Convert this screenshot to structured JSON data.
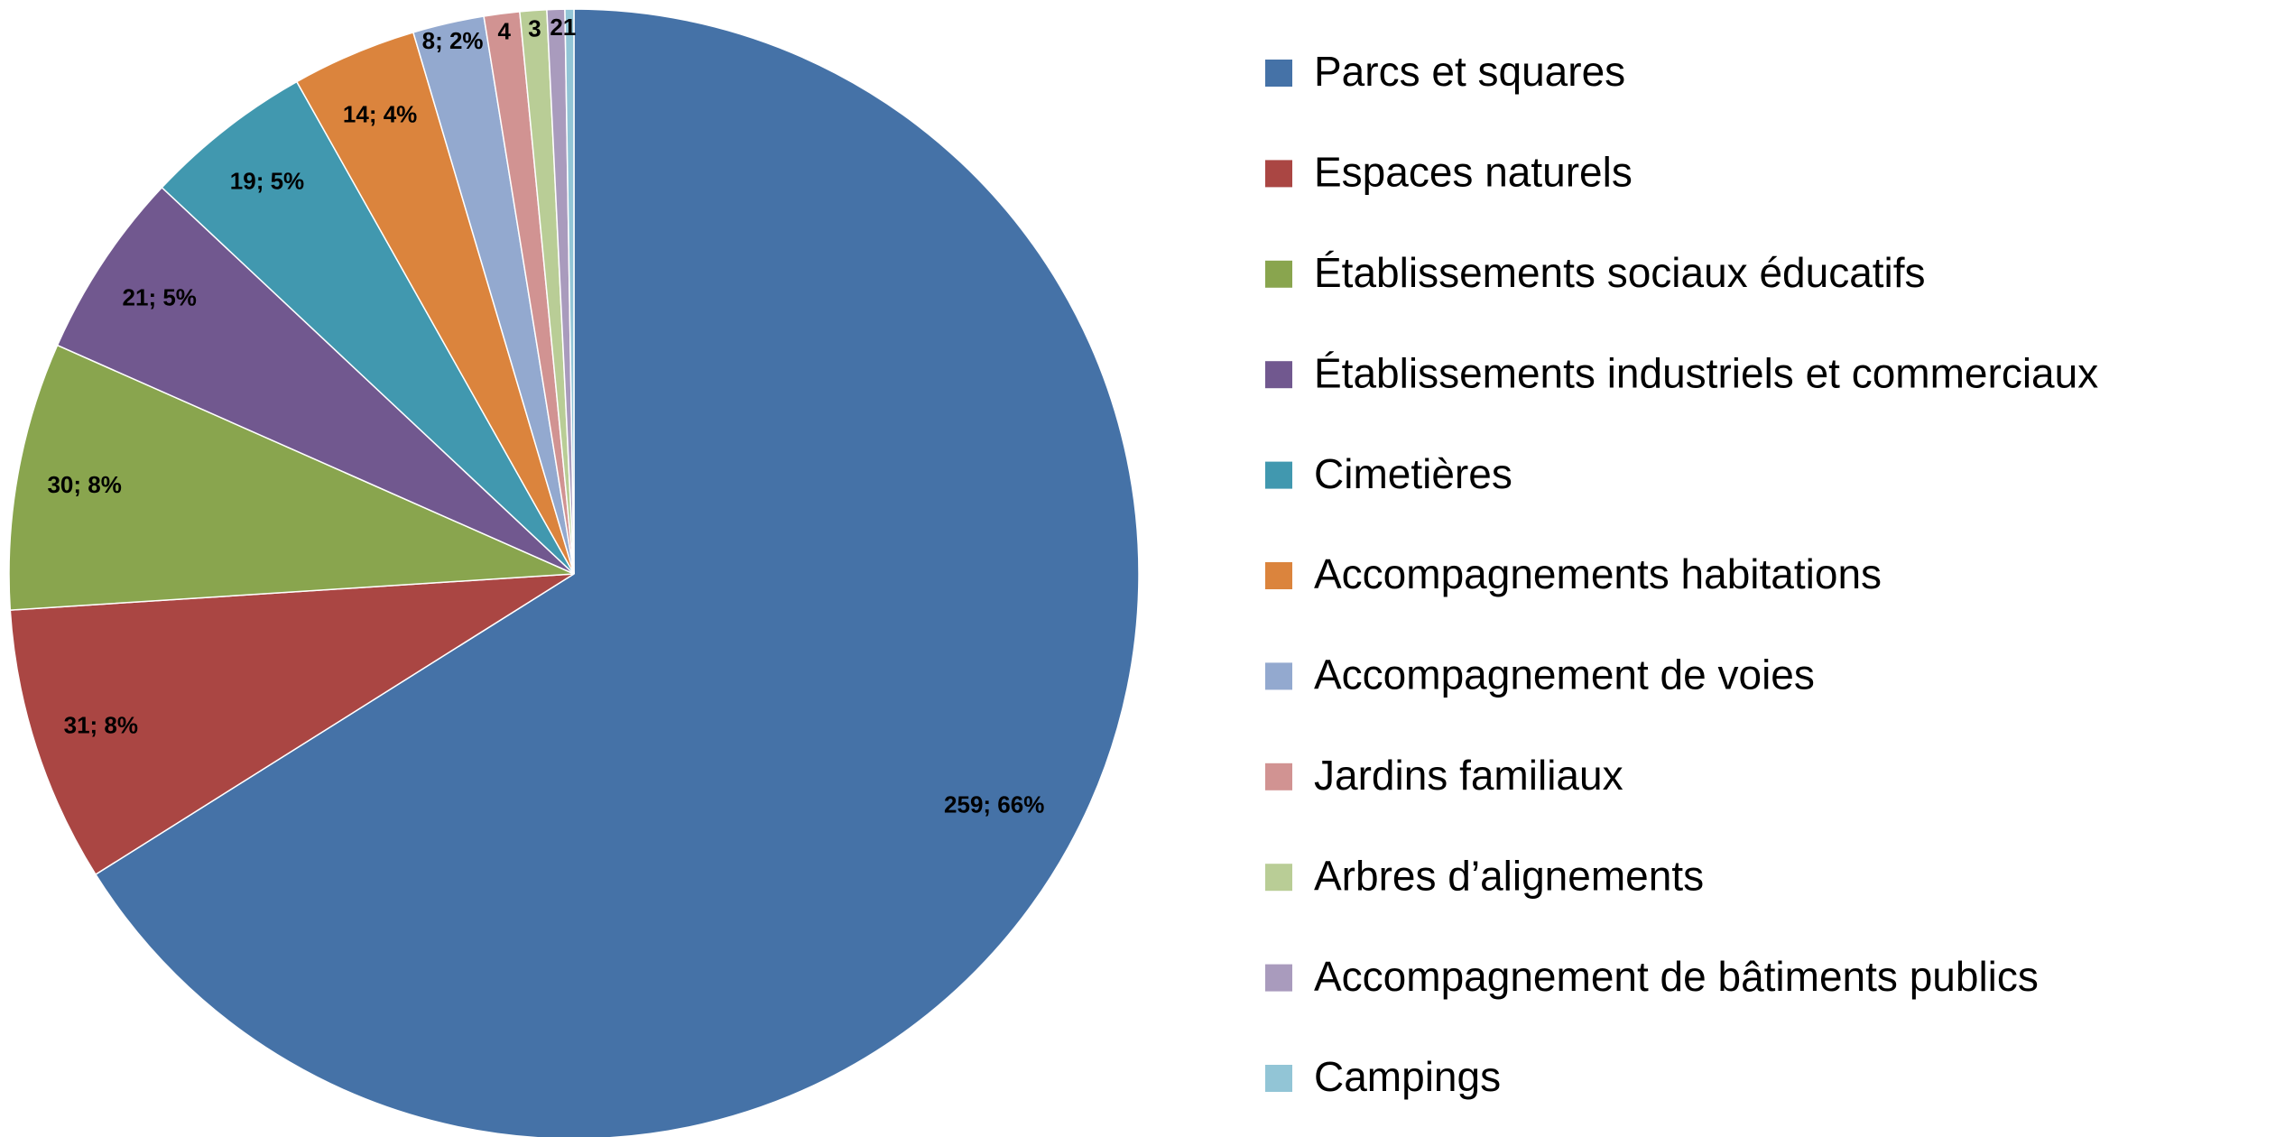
{
  "chart_data": {
    "type": "pie",
    "categories": [
      "Parcs et squares",
      "Espaces naturels",
      "Établissements sociaux éducatifs",
      "Établissements industriels et commerciaux",
      "Cimetières",
      "Accompagnements habitations",
      "Accompagnement de voies",
      "Jardins familiaux",
      "Arbres d’alignements",
      "Accompagnement de bâtiments publics",
      "Campings"
    ],
    "values": [
      259,
      31,
      30,
      21,
      19,
      14,
      8,
      4,
      3,
      2,
      1
    ],
    "value_labels": [
      "259; 66%",
      "31; 8%",
      "30; 8%",
      "21; 5%",
      "19; 5%",
      "14; 4%",
      "8; 2%",
      "4",
      "3",
      "2",
      "1"
    ],
    "colors": [
      "#4572a7",
      "#aa4643",
      "#89a54e",
      "#71588f",
      "#4198af",
      "#db843d",
      "#93a9cf",
      "#d19392",
      "#b9cd96",
      "#a99bbd",
      "#92c5d6"
    ],
    "legend": "right"
  }
}
